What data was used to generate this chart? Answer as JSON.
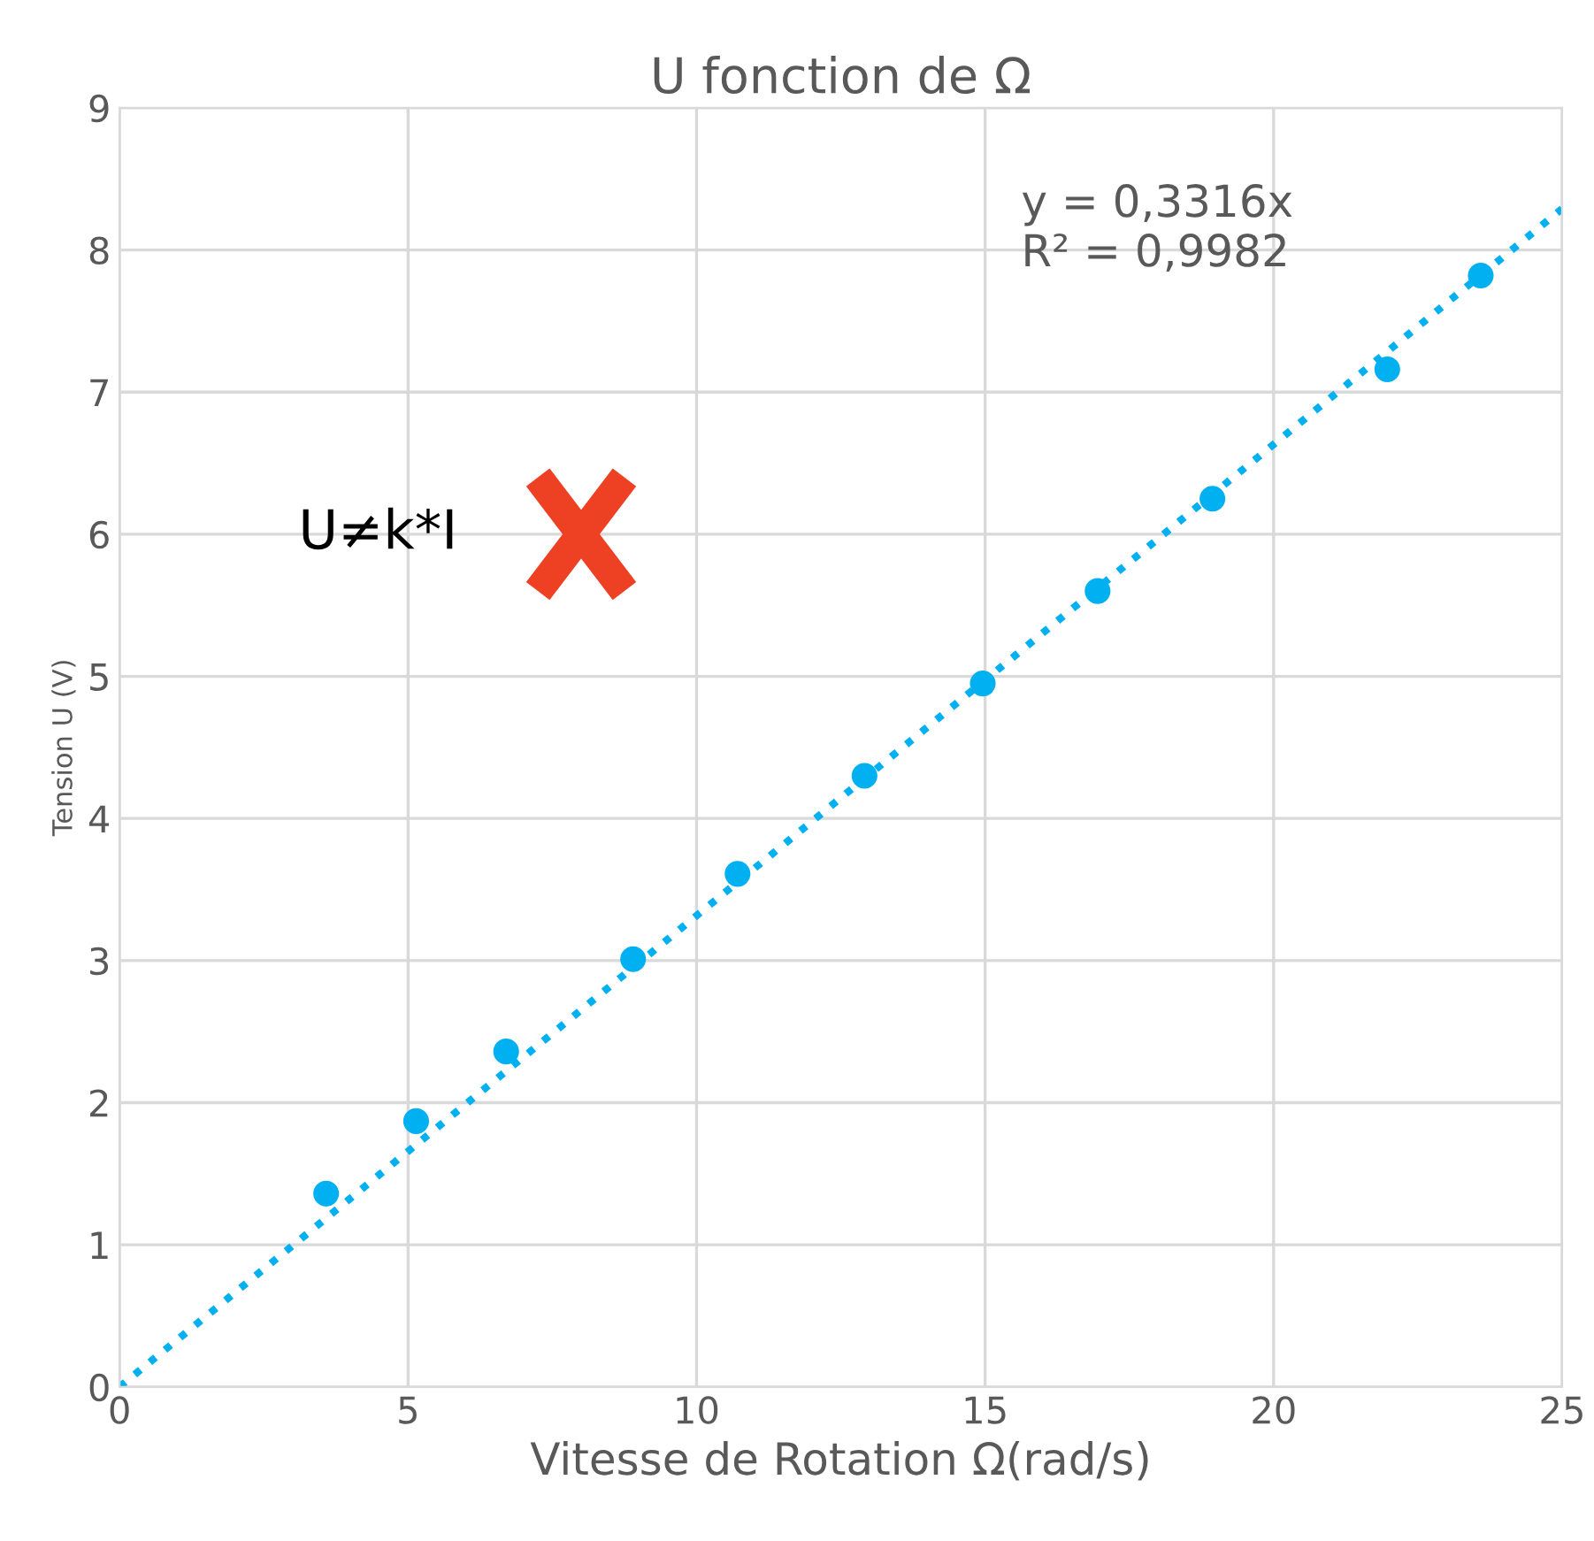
{
  "chart_data": {
    "type": "scatter",
    "title": "U fonction de Ω",
    "xlabel": "Vitesse de Rotation Ω(rad/s)",
    "ylabel": "Tension U (V)",
    "xlim": [
      0,
      25
    ],
    "xticks": [
      0,
      5,
      10,
      15,
      20,
      25
    ],
    "ylim": [
      0,
      9
    ],
    "yticks": [
      0,
      1,
      2,
      3,
      4,
      5,
      6,
      7,
      8,
      9
    ],
    "grid": true,
    "series": [
      {
        "marker": "circle",
        "color": "#00b0f0",
        "x": [
          3.58,
          5.14,
          6.7,
          8.9,
          10.71,
          12.91,
          14.96,
          16.95,
          18.94,
          21.97,
          23.59
        ],
        "values": [
          1.36,
          1.87,
          2.36,
          3.01,
          3.61,
          4.3,
          4.95,
          5.6,
          6.25,
          7.16,
          7.82
        ]
      },
      {
        "type": "line",
        "marker": "none",
        "color": "#00b0f0",
        "line_style": "dotted",
        "x": [
          0,
          25
        ],
        "values": [
          0,
          8.29
        ]
      }
    ],
    "annotations": [
      "y = 0,3316x\nR² = 0,9982",
      "U≠k*I"
    ]
  }
}
